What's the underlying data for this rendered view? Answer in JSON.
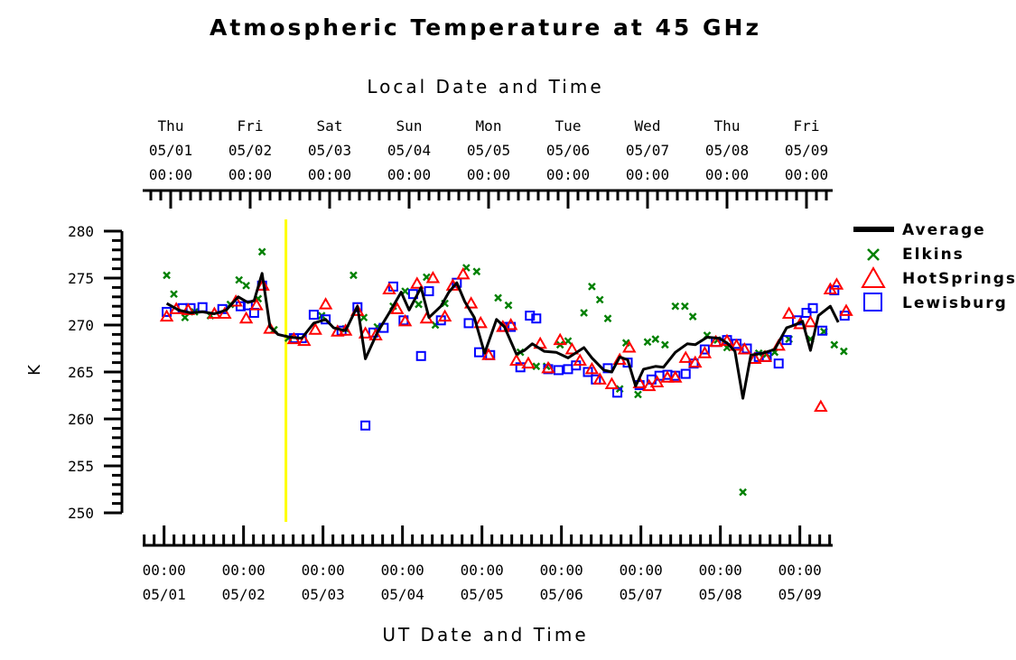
{
  "chart_data": {
    "type": "line",
    "title": "Atmospheric Temperature at 45 GHz",
    "top_axis_title": "Local Date and Time",
    "xlabel": "UT Date and Time",
    "ylabel": "K",
    "ylim": [
      250,
      280
    ],
    "y_ticks": [
      "250",
      "255",
      "260",
      "265",
      "270",
      "275",
      "280"
    ],
    "x_unit": "day",
    "xlim": [
      0.0,
      8.75
    ],
    "top_ticks": [
      {
        "day": "Thu",
        "date": "05/01",
        "time": "00:00"
      },
      {
        "day": "Fri",
        "date": "05/02",
        "time": "00:00"
      },
      {
        "day": "Sat",
        "date": "05/03",
        "time": "00:00"
      },
      {
        "day": "Sun",
        "date": "05/04",
        "time": "00:00"
      },
      {
        "day": "Mon",
        "date": "05/05",
        "time": "00:00"
      },
      {
        "day": "Tue",
        "date": "05/06",
        "time": "00:00"
      },
      {
        "day": "Wed",
        "date": "05/07",
        "time": "00:00"
      },
      {
        "day": "Thu",
        "date": "05/08",
        "time": "00:00"
      },
      {
        "day": "Fri",
        "date": "05/09",
        "time": "00:00"
      }
    ],
    "bottom_ticks": [
      {
        "time": "00:00",
        "date": "05/01"
      },
      {
        "time": "00:00",
        "date": "05/02"
      },
      {
        "time": "00:00",
        "date": "05/03"
      },
      {
        "time": "00:00",
        "date": "05/04"
      },
      {
        "time": "00:00",
        "date": "05/05"
      },
      {
        "time": "00:00",
        "date": "05/06"
      },
      {
        "time": "00:00",
        "date": "05/07"
      },
      {
        "time": "00:00",
        "date": "05/08"
      },
      {
        "time": "00:00",
        "date": "05/09"
      }
    ],
    "marker_line": {
      "day": 1.45,
      "color": "#ffff00"
    },
    "legend_position": "right",
    "series": [
      {
        "name": "Average",
        "style": "line",
        "color": "#000000",
        "points": [
          [
            -0.05,
            272.3
          ],
          [
            0.1,
            271.6
          ],
          [
            0.25,
            271.3
          ],
          [
            0.4,
            271.4
          ],
          [
            0.55,
            271.2
          ],
          [
            0.7,
            271.6
          ],
          [
            0.85,
            273.0
          ],
          [
            0.97,
            272.4
          ],
          [
            1.05,
            272.6
          ],
          [
            1.15,
            275.5
          ],
          [
            1.25,
            269.8
          ],
          [
            1.35,
            269.0
          ],
          [
            1.5,
            268.7
          ],
          [
            1.65,
            268.6
          ],
          [
            1.8,
            270.2
          ],
          [
            1.95,
            270.6
          ],
          [
            2.05,
            269.7
          ],
          [
            2.2,
            269.4
          ],
          [
            2.35,
            272.0
          ],
          [
            2.45,
            266.4
          ],
          [
            2.6,
            269.2
          ],
          [
            2.75,
            271.3
          ],
          [
            2.9,
            273.5
          ],
          [
            3.0,
            271.6
          ],
          [
            3.15,
            274.0
          ],
          [
            3.25,
            270.8
          ],
          [
            3.4,
            272.0
          ],
          [
            3.5,
            273.5
          ],
          [
            3.6,
            274.5
          ],
          [
            3.7,
            272.5
          ],
          [
            3.82,
            270.8
          ],
          [
            3.95,
            267.0
          ],
          [
            4.1,
            270.6
          ],
          [
            4.2,
            269.8
          ],
          [
            4.35,
            266.9
          ],
          [
            4.45,
            267.3
          ],
          [
            4.55,
            268.0
          ],
          [
            4.7,
            267.2
          ],
          [
            4.85,
            267.1
          ],
          [
            5.0,
            266.5
          ],
          [
            5.2,
            267.6
          ],
          [
            5.3,
            266.5
          ],
          [
            5.45,
            265.2
          ],
          [
            5.55,
            265.0
          ],
          [
            5.65,
            266.6
          ],
          [
            5.75,
            266.3
          ],
          [
            5.85,
            263.5
          ],
          [
            5.95,
            265.3
          ],
          [
            6.1,
            265.6
          ],
          [
            6.2,
            265.5
          ],
          [
            6.35,
            267.1
          ],
          [
            6.5,
            268.0
          ],
          [
            6.6,
            267.9
          ],
          [
            6.75,
            268.7
          ],
          [
            6.9,
            268.6
          ],
          [
            7.0,
            268.1
          ],
          [
            7.1,
            267.2
          ],
          [
            7.2,
            262.2
          ],
          [
            7.3,
            266.8
          ],
          [
            7.45,
            267.0
          ],
          [
            7.6,
            267.4
          ],
          [
            7.75,
            269.7
          ],
          [
            7.85,
            270.0
          ],
          [
            7.95,
            270.4
          ],
          [
            8.05,
            267.3
          ],
          [
            8.15,
            271.0
          ],
          [
            8.3,
            272.0
          ],
          [
            8.4,
            270.3
          ]
        ]
      },
      {
        "name": "Elkins",
        "style": "x",
        "color": "#008000",
        "points": [
          [
            -0.05,
            275.3
          ],
          [
            0.04,
            273.3
          ],
          [
            0.18,
            270.8
          ],
          [
            0.3,
            271.4
          ],
          [
            0.5,
            271.0
          ],
          [
            0.75,
            272.2
          ],
          [
            0.86,
            274.8
          ],
          [
            0.95,
            274.2
          ],
          [
            1.1,
            272.8
          ],
          [
            1.15,
            277.8
          ],
          [
            1.3,
            269.5
          ],
          [
            1.48,
            268.6
          ],
          [
            1.9,
            271.0
          ],
          [
            2.2,
            269.6
          ],
          [
            2.3,
            275.3
          ],
          [
            2.43,
            270.8
          ],
          [
            2.6,
            269.8
          ],
          [
            2.8,
            272.0
          ],
          [
            2.95,
            273.6
          ],
          [
            3.12,
            272.2
          ],
          [
            3.22,
            275.1
          ],
          [
            3.33,
            270.0
          ],
          [
            3.45,
            272.3
          ],
          [
            3.72,
            276.1
          ],
          [
            3.85,
            275.7
          ],
          [
            4.12,
            272.9
          ],
          [
            4.25,
            272.1
          ],
          [
            4.4,
            267.1
          ],
          [
            4.6,
            265.6
          ],
          [
            4.73,
            265.6
          ],
          [
            4.9,
            267.9
          ],
          [
            5.0,
            268.3
          ],
          [
            5.2,
            271.3
          ],
          [
            5.3,
            274.1
          ],
          [
            5.4,
            272.7
          ],
          [
            5.5,
            270.7
          ],
          [
            5.65,
            263.2
          ],
          [
            5.73,
            268.1
          ],
          [
            5.88,
            262.6
          ],
          [
            6.0,
            268.2
          ],
          [
            6.1,
            268.5
          ],
          [
            6.22,
            267.9
          ],
          [
            6.35,
            272.0
          ],
          [
            6.47,
            272.0
          ],
          [
            6.57,
            270.9
          ],
          [
            6.75,
            268.9
          ],
          [
            6.88,
            268.4
          ],
          [
            7.0,
            267.6
          ],
          [
            7.2,
            252.2
          ],
          [
            7.4,
            267.0
          ],
          [
            7.5,
            266.9
          ],
          [
            7.6,
            267.1
          ],
          [
            7.78,
            268.5
          ],
          [
            8.05,
            268.5
          ],
          [
            8.22,
            269.3
          ],
          [
            8.35,
            267.9
          ],
          [
            8.47,
            267.2
          ]
        ]
      },
      {
        "name": "HotSprings",
        "style": "triangle",
        "color": "#ff0000",
        "points": [
          [
            -0.05,
            270.9
          ],
          [
            0.07,
            271.7
          ],
          [
            0.22,
            271.6
          ],
          [
            0.55,
            271.2
          ],
          [
            0.68,
            271.2
          ],
          [
            0.82,
            272.5
          ],
          [
            0.95,
            270.7
          ],
          [
            1.08,
            272.1
          ],
          [
            1.16,
            274.2
          ],
          [
            1.25,
            269.6
          ],
          [
            1.55,
            268.5
          ],
          [
            1.68,
            268.3
          ],
          [
            1.82,
            269.5
          ],
          [
            1.95,
            272.2
          ],
          [
            2.1,
            269.3
          ],
          [
            2.2,
            269.4
          ],
          [
            2.35,
            271.5
          ],
          [
            2.45,
            269.1
          ],
          [
            2.58,
            268.9
          ],
          [
            2.75,
            273.8
          ],
          [
            2.85,
            271.7
          ],
          [
            2.95,
            270.4
          ],
          [
            3.1,
            274.4
          ],
          [
            3.22,
            270.7
          ],
          [
            3.3,
            275.0
          ],
          [
            3.45,
            270.9
          ],
          [
            3.55,
            274.2
          ],
          [
            3.68,
            275.4
          ],
          [
            3.78,
            272.3
          ],
          [
            3.9,
            270.2
          ],
          [
            4.0,
            266.8
          ],
          [
            4.18,
            269.8
          ],
          [
            4.28,
            270.0
          ],
          [
            4.35,
            266.2
          ],
          [
            4.5,
            265.9
          ],
          [
            4.65,
            268.0
          ],
          [
            4.75,
            265.4
          ],
          [
            4.9,
            268.4
          ],
          [
            5.05,
            267.4
          ],
          [
            5.15,
            266.2
          ],
          [
            5.3,
            265.3
          ],
          [
            5.4,
            264.2
          ],
          [
            5.55,
            263.7
          ],
          [
            5.65,
            266.3
          ],
          [
            5.77,
            267.6
          ],
          [
            5.9,
            263.8
          ],
          [
            6.02,
            263.5
          ],
          [
            6.12,
            263.9
          ],
          [
            6.25,
            264.4
          ],
          [
            6.35,
            264.4
          ],
          [
            6.48,
            266.5
          ],
          [
            6.6,
            266.0
          ],
          [
            6.72,
            267.0
          ],
          [
            6.86,
            268.2
          ],
          [
            7.0,
            268.3
          ],
          [
            7.12,
            267.8
          ],
          [
            7.22,
            267.4
          ],
          [
            7.35,
            266.4
          ],
          [
            7.48,
            266.6
          ],
          [
            7.65,
            267.8
          ],
          [
            7.78,
            271.2
          ],
          [
            7.92,
            270.1
          ],
          [
            8.05,
            270.3
          ],
          [
            8.18,
            261.3
          ],
          [
            8.3,
            273.8
          ],
          [
            8.38,
            274.3
          ],
          [
            8.5,
            271.5
          ]
        ]
      },
      {
        "name": "Lewisburg",
        "style": "square",
        "color": "#0000ff",
        "points": [
          [
            -0.05,
            271.4
          ],
          [
            0.15,
            271.8
          ],
          [
            0.25,
            271.8
          ],
          [
            0.4,
            271.9
          ],
          [
            0.65,
            271.7
          ],
          [
            0.88,
            272.0
          ],
          [
            0.97,
            272.1
          ],
          [
            1.05,
            271.3
          ],
          [
            1.15,
            274.2
          ],
          [
            1.55,
            268.6
          ],
          [
            1.65,
            268.6
          ],
          [
            1.8,
            271.1
          ],
          [
            1.95,
            270.6
          ],
          [
            2.15,
            269.4
          ],
          [
            2.35,
            271.9
          ],
          [
            2.45,
            259.3
          ],
          [
            2.55,
            269.2
          ],
          [
            2.68,
            269.7
          ],
          [
            2.8,
            274.1
          ],
          [
            2.93,
            270.5
          ],
          [
            3.05,
            273.3
          ],
          [
            3.15,
            266.7
          ],
          [
            3.25,
            273.6
          ],
          [
            3.4,
            270.5
          ],
          [
            3.6,
            274.5
          ],
          [
            3.75,
            270.2
          ],
          [
            3.88,
            267.1
          ],
          [
            4.02,
            266.8
          ],
          [
            4.2,
            269.8
          ],
          [
            4.28,
            269.8
          ],
          [
            4.4,
            265.5
          ],
          [
            4.52,
            271.0
          ],
          [
            4.6,
            270.7
          ],
          [
            4.75,
            265.3
          ],
          [
            4.88,
            265.2
          ],
          [
            5.0,
            265.3
          ],
          [
            5.1,
            265.7
          ],
          [
            5.25,
            265.0
          ],
          [
            5.35,
            264.2
          ],
          [
            5.5,
            265.4
          ],
          [
            5.62,
            262.8
          ],
          [
            5.75,
            266.0
          ],
          [
            5.9,
            263.6
          ],
          [
            6.05,
            264.2
          ],
          [
            6.15,
            264.6
          ],
          [
            6.25,
            264.7
          ],
          [
            6.35,
            264.6
          ],
          [
            6.48,
            264.8
          ],
          [
            6.58,
            265.9
          ],
          [
            6.72,
            267.4
          ],
          [
            6.86,
            268.2
          ],
          [
            7.0,
            268.4
          ],
          [
            7.12,
            268.0
          ],
          [
            7.25,
            267.5
          ],
          [
            7.4,
            266.6
          ],
          [
            7.5,
            266.6
          ],
          [
            7.65,
            265.9
          ],
          [
            7.75,
            268.4
          ],
          [
            7.88,
            270.5
          ],
          [
            8.0,
            271.3
          ],
          [
            8.08,
            271.8
          ],
          [
            8.2,
            269.4
          ],
          [
            8.35,
            273.7
          ],
          [
            8.48,
            271.0
          ]
        ]
      }
    ]
  }
}
